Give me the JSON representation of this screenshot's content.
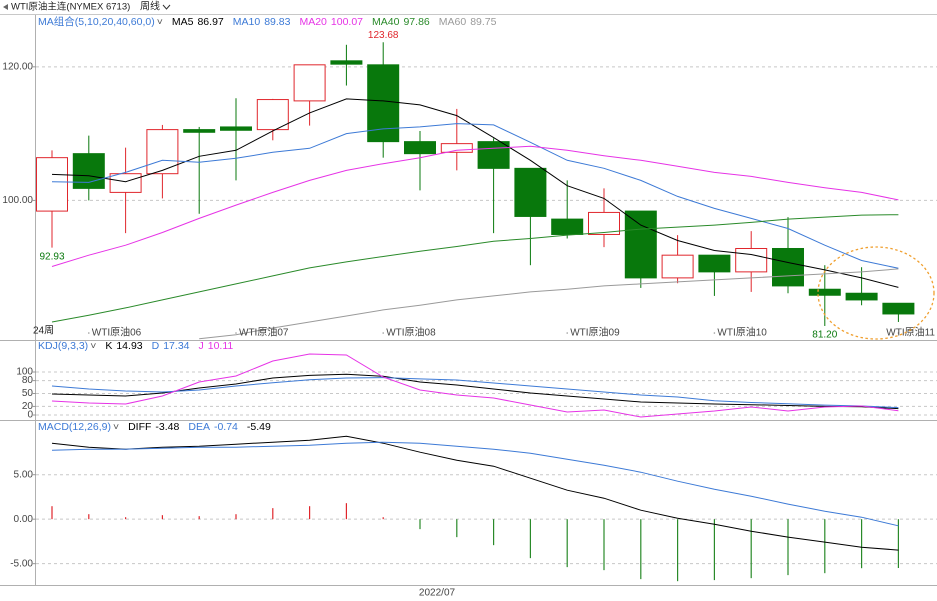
{
  "header": {
    "symbol": "WTI原油主连(NYMEX 6713)",
    "period": "周线"
  },
  "chart_data": [
    {
      "type": "candlestick",
      "legend_title": "MA组合(5,10,20,40,60,0)",
      "period_label": "24周",
      "categories": [
        null,
        "WTI原油06",
        null,
        null,
        null,
        "WTI原油07",
        null,
        null,
        null,
        "WTI原油08",
        null,
        null,
        null,
        null,
        "WTI原油09",
        null,
        null,
        null,
        "WTI原油10",
        null,
        null,
        null,
        null,
        "WTI原油11"
      ],
      "open": [
        98.4,
        107.0,
        101.2,
        104.0,
        110.6,
        111.0,
        110.6,
        114.9,
        120.9,
        120.3,
        108.8,
        107.2,
        108.8,
        104.8,
        97.2,
        94.9,
        98.4,
        88.4,
        91.8,
        89.3,
        92.8,
        86.7,
        86.1,
        84.6
      ],
      "high": [
        107.5,
        109.7,
        107.9,
        111.3,
        111.0,
        115.3,
        115.2,
        120.3,
        123.3,
        123.68,
        110.4,
        113.7,
        109.3,
        104.8,
        103.0,
        101.8,
        98.4,
        94.8,
        91.8,
        95.4,
        97.5,
        90.3,
        90.0,
        84.6
      ],
      "low": [
        92.93,
        100.0,
        95.1,
        100.3,
        98.0,
        103.0,
        109.0,
        111.2,
        117.2,
        106.4,
        101.5,
        104.5,
        95.1,
        90.3,
        94.3,
        93.0,
        86.9,
        87.6,
        85.7,
        86.3,
        86.1,
        81.2,
        84.3,
        81.8
      ],
      "close": [
        106.4,
        101.8,
        104.0,
        110.6,
        110.2,
        110.5,
        115.1,
        120.3,
        120.4,
        108.8,
        107.0,
        108.5,
        104.8,
        97.6,
        94.9,
        98.2,
        88.4,
        91.8,
        89.3,
        92.8,
        87.2,
        85.8,
        85.1,
        83.0
      ],
      "high_labels": [
        null,
        null,
        null,
        null,
        null,
        null,
        null,
        null,
        null,
        "123.68",
        null,
        null,
        null,
        null,
        null,
        null,
        null,
        null,
        null,
        null,
        null,
        null,
        null,
        null
      ],
      "low_labels": [
        "92.93",
        null,
        null,
        null,
        null,
        null,
        null,
        null,
        null,
        null,
        null,
        null,
        null,
        null,
        null,
        null,
        null,
        null,
        null,
        null,
        null,
        "81.20",
        null,
        null
      ],
      "up_color": "#e0262c",
      "down_color": "#08780c",
      "series": [
        {
          "name": "MA5",
          "color": "#000000",
          "values": [
            103.9,
            103.7,
            102.8,
            104.5,
            106.6,
            107.5,
            110.4,
            113.1,
            115.2,
            114.9,
            114.3,
            112.7,
            109.4,
            106.0,
            102.2,
            100.3,
            96.3,
            94.0,
            92.5,
            91.9,
            90.7,
            89.6,
            88.4,
            86.97
          ]
        },
        {
          "name": "MA10",
          "color": "#3d7ad6",
          "values": [
            102.8,
            102.7,
            104.2,
            106.0,
            105.7,
            106.3,
            107.2,
            107.8,
            110.0,
            110.7,
            111.0,
            111.5,
            111.3,
            108.7,
            106.0,
            104.8,
            103.0,
            100.6,
            98.8,
            97.3,
            95.8,
            93.3,
            91.0,
            89.83
          ]
        },
        {
          "name": "MA20",
          "color": "#e633e6",
          "values": [
            90.1,
            91.8,
            93.3,
            95.2,
            97.3,
            99.3,
            101.2,
            103.0,
            104.5,
            105.5,
            106.4,
            107.5,
            107.8,
            108.1,
            107.5,
            106.7,
            106.0,
            105.1,
            104.2,
            103.6,
            102.7,
            101.9,
            101.2,
            100.07
          ]
        },
        {
          "name": "MA40",
          "color": "#2a8a2a",
          "values": [
            81.8,
            82.8,
            83.9,
            85.1,
            86.3,
            87.5,
            88.7,
            89.9,
            90.8,
            91.6,
            92.4,
            93.1,
            93.9,
            94.3,
            94.8,
            95.2,
            95.7,
            96.0,
            96.3,
            96.7,
            97.2,
            97.5,
            97.8,
            97.86
          ]
        },
        {
          "name": "MA60",
          "color": "#9a9a9a",
          "values": [
            null,
            null,
            null,
            null,
            79.3,
            79.9,
            80.9,
            81.8,
            82.7,
            83.6,
            84.3,
            85.1,
            85.7,
            86.3,
            86.7,
            87.2,
            87.5,
            87.8,
            88.1,
            88.4,
            88.7,
            89.0,
            89.3,
            89.75
          ]
        }
      ],
      "ylim": [
        79.1,
        127.76
      ],
      "yticks": [
        {
          "value": 100,
          "label": "100.00"
        },
        {
          "value": 120,
          "label": "120.00"
        }
      ],
      "grid": true
    },
    {
      "type": "line",
      "title": "KDJ(9,3,3)",
      "series": [
        {
          "name": "K",
          "color": "#000000",
          "values": [
            48.8,
            46.5,
            44.2,
            51.2,
            62.8,
            72.1,
            86.0,
            92.0,
            95.0,
            90.0,
            76.7,
            69.8,
            60.5,
            51.2,
            44.2,
            37.2,
            30.2,
            27.9,
            25.6,
            24.0,
            22.0,
            20.0,
            19.0,
            14.93
          ]
        },
        {
          "name": "D",
          "color": "#3d7ad6",
          "values": [
            67.4,
            60.5,
            55.8,
            53.5,
            58.1,
            67.4,
            75.0,
            82.0,
            86.0,
            87.0,
            84.0,
            81.4,
            74.4,
            67.4,
            60.5,
            53.5,
            46.5,
            41.9,
            33.0,
            29.0,
            26.0,
            23.0,
            21.0,
            17.34
          ]
        },
        {
          "name": "J",
          "color": "#e633e6",
          "values": [
            32.6,
            27.9,
            25.6,
            44.2,
            76.7,
            90.7,
            125.6,
            141.9,
            139.5,
            88.4,
            58.1,
            46.5,
            39.5,
            23.3,
            7.0,
            11.6,
            -4.7,
            2.3,
            9.3,
            18.6,
            9.3,
            18.6,
            20.9,
            10.11
          ]
        }
      ],
      "ylim": [
        -11.6,
        146.5
      ],
      "yticks": [
        0,
        20,
        50,
        80,
        100
      ],
      "grid": true
    },
    {
      "type": "combo",
      "title": "MACD(12,26,9)",
      "xlabel": "2022/07",
      "series": [
        {
          "name": "DIFF",
          "color": "#000000",
          "values": [
            8.54,
            8.09,
            7.87,
            8.09,
            8.2,
            8.43,
            8.65,
            8.88,
            9.33,
            8.54,
            7.53,
            6.63,
            5.96,
            4.61,
            3.26,
            2.36,
            1.01,
            0.11,
            -0.56,
            -1.35,
            -2.02,
            -2.58,
            -3.15,
            -3.48
          ]
        },
        {
          "name": "DEA",
          "color": "#3d7ad6",
          "values": [
            7.75,
            7.87,
            7.87,
            7.98,
            8.09,
            8.09,
            8.2,
            8.31,
            8.54,
            8.65,
            8.54,
            8.2,
            7.87,
            7.42,
            6.74,
            6.07,
            5.28,
            4.27,
            3.37,
            2.58,
            1.69,
            0.9,
            0.22,
            -0.74
          ]
        }
      ],
      "histogram": {
        "up_color": "#e0262c",
        "down_color": "#2a8a2a",
        "values": [
          1.46,
          0.56,
          0.22,
          0.45,
          0.34,
          0.56,
          1.24,
          1.46,
          1.8,
          0.22,
          -1.12,
          -2.02,
          -2.92,
          -4.38,
          -5.39,
          -5.73,
          -6.74,
          -6.97,
          -6.85,
          -6.63,
          -6.29,
          -6.07,
          -5.51,
          -5.49
        ]
      },
      "ylim": [
        -7.4,
        9.8
      ],
      "yticks": [
        {
          "value": -5,
          "label": "-5.00"
        },
        {
          "value": 0,
          "label": "0.00"
        },
        {
          "value": 5,
          "label": "5.00"
        }
      ],
      "grid": true
    }
  ]
}
